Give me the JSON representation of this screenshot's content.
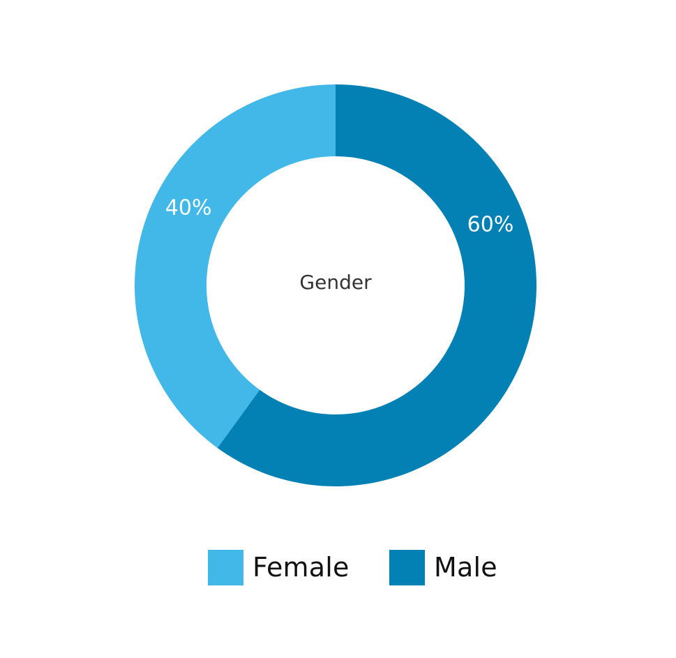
{
  "chart_data": {
    "type": "pie",
    "variant": "donut",
    "center_label": "Gender",
    "categories": [
      "Female",
      "Male"
    ],
    "values": [
      40,
      60
    ],
    "value_labels": [
      "40%",
      "60%"
    ],
    "colors": [
      "#42b8e8",
      "#0381b4"
    ],
    "legend": "bottom-center"
  }
}
